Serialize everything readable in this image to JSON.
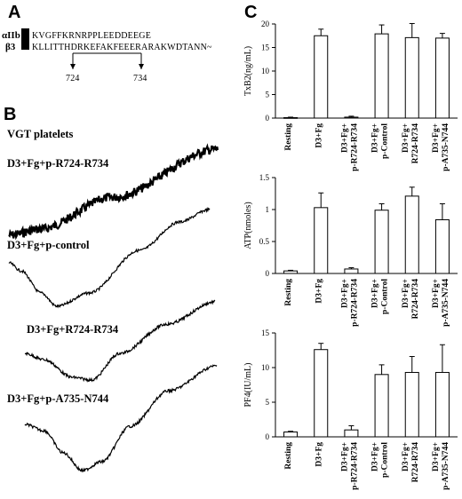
{
  "panel_a": {
    "letter": "A",
    "rows": [
      {
        "label": "αIIb",
        "sequence": "KVGFFKRNRPPLEEDDEEGE"
      },
      {
        "label": "β3",
        "sequence": "KLLITTHDRKEFAKFEEERARAKWDTANN~"
      }
    ],
    "marker_start": "724",
    "marker_end": "734"
  },
  "panel_b": {
    "letter": "B",
    "subtitle": "VGT platelets",
    "traces": [
      {
        "label": "D3+Fg+p-R724-R734"
      },
      {
        "label": "D3+Fg+p-control"
      },
      {
        "label": "D3+Fg+R724-R734"
      },
      {
        "label": "D3+Fg+p-A735-N744"
      }
    ]
  },
  "panel_c": {
    "letter": "C"
  },
  "chart_data": [
    {
      "type": "bar",
      "ylabel": "TxB2(ng/mL)",
      "ylim": [
        0,
        20
      ],
      "yticks": [
        "0",
        "5",
        "10",
        "15",
        "20"
      ],
      "categories": [
        "Resting",
        "D3+Fg",
        "D3+Fg+ p-R724-R734",
        "D3+Fg+ p-Control",
        "D3+Fg+ R724-R734",
        "D3+Fg+ p-A735-N744"
      ],
      "values": [
        0.1,
        17.5,
        0.2,
        17.9,
        17.1,
        17.0
      ],
      "errors": [
        0.1,
        1.4,
        0.2,
        1.9,
        3.0,
        1.0
      ]
    },
    {
      "type": "bar",
      "ylabel": "ATP(nmoles)",
      "ylim": [
        0,
        1.5
      ],
      "yticks": [
        "0",
        "0.5",
        "1",
        "1.5"
      ],
      "categories": [
        "Resting",
        "D3+Fg",
        "D3+Fg+ p-R724-R734",
        "D3+Fg+ p-Control",
        "D3+Fg+ R724-R734",
        "D3+Fg+ p-A735-N744"
      ],
      "values": [
        0.04,
        1.03,
        0.07,
        0.99,
        1.21,
        0.84
      ],
      "errors": [
        0.01,
        0.23,
        0.02,
        0.1,
        0.14,
        0.25
      ]
    },
    {
      "type": "bar",
      "ylabel": "PF4(IU/mL)",
      "ylim": [
        0,
        15
      ],
      "yticks": [
        "0",
        "5",
        "10",
        "15"
      ],
      "categories": [
        "Resting",
        "D3+Fg",
        "D3+Fg+ p-R724-R734",
        "D3+Fg+ p-Control",
        "D3+Fg+ R724-R734",
        "D3+Fg+ p-A735-N744"
      ],
      "values": [
        0.7,
        12.6,
        1.0,
        9.0,
        9.3,
        9.3
      ],
      "errors": [
        0.1,
        0.9,
        0.6,
        1.4,
        2.3,
        4.0
      ]
    }
  ]
}
